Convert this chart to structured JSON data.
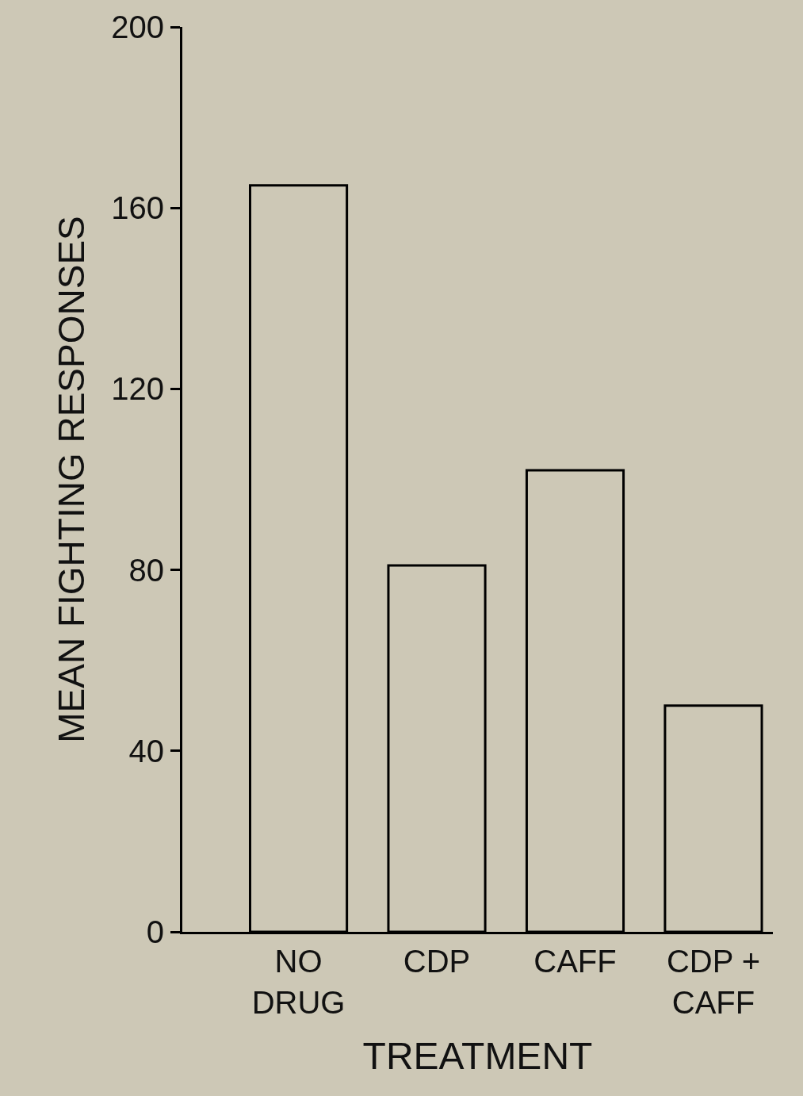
{
  "chart_data": {
    "type": "bar",
    "categories": [
      "NO\nDRUG",
      "CDP",
      "CAFF",
      "CDP +\nCAFF"
    ],
    "values": [
      165,
      81,
      102,
      50
    ],
    "color": "#cdc8b6",
    "ylim": [
      0,
      200
    ],
    "yticks": [
      0,
      40,
      80,
      120,
      160,
      200
    ],
    "xlabel": "TREATMENT",
    "ylabel": "MEAN FIGHTING RESPONSES",
    "grid": false,
    "legend": false
  }
}
